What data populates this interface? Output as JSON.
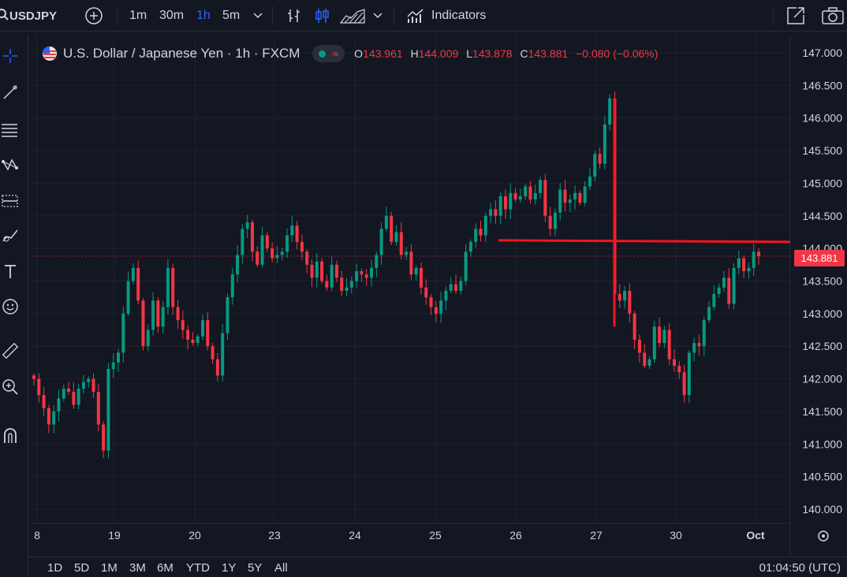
{
  "toolbar": {
    "symbol": "USDJPY",
    "intervals": [
      "1m",
      "30m",
      "1h",
      "5m"
    ],
    "active_interval": "1h",
    "indicators_label": "Indicators"
  },
  "legend": {
    "title": "U.S. Dollar / Japanese Yen · 1h · FXCM",
    "open_key": "O",
    "open": "143.961",
    "high_key": "H",
    "high": "144.009",
    "low_key": "L",
    "low": "143.878",
    "close_key": "C",
    "close": "143.881",
    "change": "−0.080 (−0.06%)"
  },
  "price_tag": "143.881",
  "ranges": [
    "1D",
    "5D",
    "1M",
    "3M",
    "6M",
    "YTD",
    "1Y",
    "5Y",
    "All"
  ],
  "clock": "01:04:50 (UTC)",
  "colors": {
    "up": "#089981",
    "down": "#f23645",
    "drawing": "#f7141e",
    "bg": "#131722",
    "accent": "#2962ff"
  },
  "chart_data": {
    "type": "candlestick",
    "y_ticks": [
      "147.000",
      "146.500",
      "146.000",
      "145.500",
      "145.000",
      "144.500",
      "144.000",
      "143.500",
      "143.000",
      "142.500",
      "142.000",
      "141.500",
      "141.000",
      "140.500",
      "140.000"
    ],
    "y_min": 140.0,
    "y_max": 147.0,
    "x_ticks": [
      "8",
      "19",
      "20",
      "23",
      "24",
      "25",
      "26",
      "27",
      "30",
      "Oct"
    ],
    "last_price": 143.881,
    "closes": [
      142.0,
      141.75,
      141.55,
      141.3,
      141.5,
      141.7,
      141.85,
      141.8,
      141.6,
      141.85,
      141.95,
      142.0,
      141.8,
      141.3,
      140.9,
      142.15,
      142.25,
      142.4,
      143.0,
      143.5,
      143.7,
      143.2,
      142.5,
      142.75,
      143.2,
      142.8,
      143.1,
      143.7,
      143.1,
      142.9,
      142.75,
      142.6,
      142.55,
      142.65,
      142.9,
      142.5,
      142.3,
      142.05,
      142.7,
      143.25,
      143.6,
      143.9,
      144.3,
      144.4,
      143.95,
      143.75,
      144.2,
      144.0,
      143.85,
      143.9,
      143.95,
      144.2,
      144.35,
      144.1,
      143.95,
      143.75,
      143.55,
      143.8,
      143.5,
      143.4,
      143.75,
      143.55,
      143.35,
      143.4,
      143.5,
      143.65,
      143.6,
      143.55,
      143.7,
      143.9,
      144.3,
      144.5,
      144.1,
      144.25,
      143.9,
      143.95,
      143.6,
      143.7,
      143.4,
      143.25,
      143.1,
      143.0,
      143.2,
      143.35,
      143.45,
      143.35,
      143.5,
      143.95,
      144.1,
      144.3,
      144.2,
      144.5,
      144.6,
      144.5,
      144.8,
      144.6,
      144.85,
      144.75,
      144.8,
      144.95,
      144.75,
      144.85,
      145.05,
      144.5,
      144.3,
      144.55,
      144.9,
      144.7,
      144.75,
      144.85,
      144.7,
      144.95,
      145.1,
      145.45,
      145.3,
      145.9,
      146.3,
      143.3,
      143.2,
      143.35,
      143.0,
      142.6,
      142.4,
      142.2,
      142.3,
      142.8,
      142.55,
      142.75,
      142.3,
      142.2,
      142.1,
      141.75,
      142.4,
      142.55,
      142.5,
      142.9,
      143.1,
      143.3,
      143.4,
      143.55,
      143.15,
      143.7,
      143.85,
      143.65,
      143.7,
      143.95,
      143.881
    ],
    "annotations": [
      {
        "type": "horizontal_line",
        "price": 144.1,
        "from_x": "26",
        "to_x": "Oct"
      },
      {
        "type": "vertical_line",
        "at_x": "27",
        "price_from": 142.8,
        "price_to": 146.3
      }
    ]
  }
}
